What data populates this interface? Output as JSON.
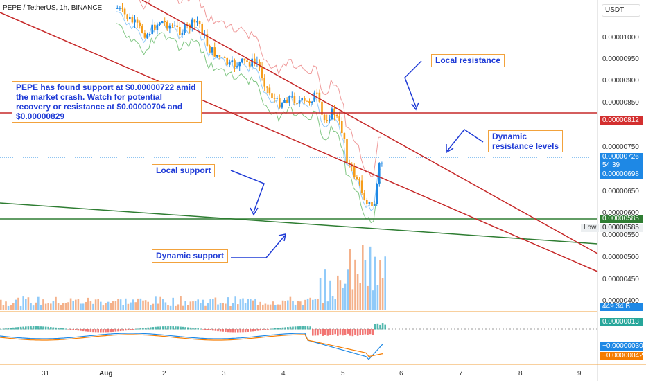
{
  "header": {
    "symbol_title": "PEPE / TetherUS, 1h, BINANCE",
    "currency_button": "USDT"
  },
  "price_scale": {
    "labels": [
      "0.00001000",
      "0.00000950",
      "0.00000900",
      "0.00000850",
      "0.00000750",
      "0.00000650",
      "0.00000600",
      "0.00000550",
      "0.00000500",
      "0.00000450",
      "0.00000400"
    ]
  },
  "price_tags": {
    "resistance": {
      "value": "0.00000812",
      "color": "#d32f2f"
    },
    "last_price": {
      "value": "0.00000726",
      "countdown": "54:39",
      "color": "#1e88e5"
    },
    "open_price": {
      "value": "0.00000698",
      "color": "#1e88e5"
    },
    "support": {
      "value": "0.00000585",
      "color": "#2e7d32"
    },
    "low": {
      "label": "Low",
      "value": "0.00000585"
    },
    "volume": {
      "value": "449.34 B",
      "color": "#1e88e5"
    },
    "macd_histogram": {
      "value": "0.00000013",
      "color": "#26a69a"
    },
    "macd_line": {
      "value": "−0.00000030",
      "color": "#1e88e5"
    },
    "signal_line": {
      "value": "−0.00000042",
      "color": "#f57c00"
    }
  },
  "time_axis": {
    "labels": [
      "31",
      "Aug",
      "2",
      "3",
      "4",
      "5",
      "6",
      "7",
      "8",
      "9"
    ]
  },
  "annotations": {
    "local_resistance": "Local resistance",
    "dynamic_resistance": "Dynamic\nresistance levels",
    "local_support": "Local support",
    "dynamic_support": "Dynamic support",
    "main_note": "PEPE has found support at $0.00000722 amid the market crash. Watch for potential recovery or resistance at $0.00000704 and $0.00000829"
  },
  "colors": {
    "up_candle": "#1e88e5",
    "down_candle": "#f59c1a",
    "resistance_line": "#c62828",
    "support_line": "#2e7d32",
    "annotation_text": "#1f3bd6",
    "annotation_border": "#f2a23c"
  }
}
